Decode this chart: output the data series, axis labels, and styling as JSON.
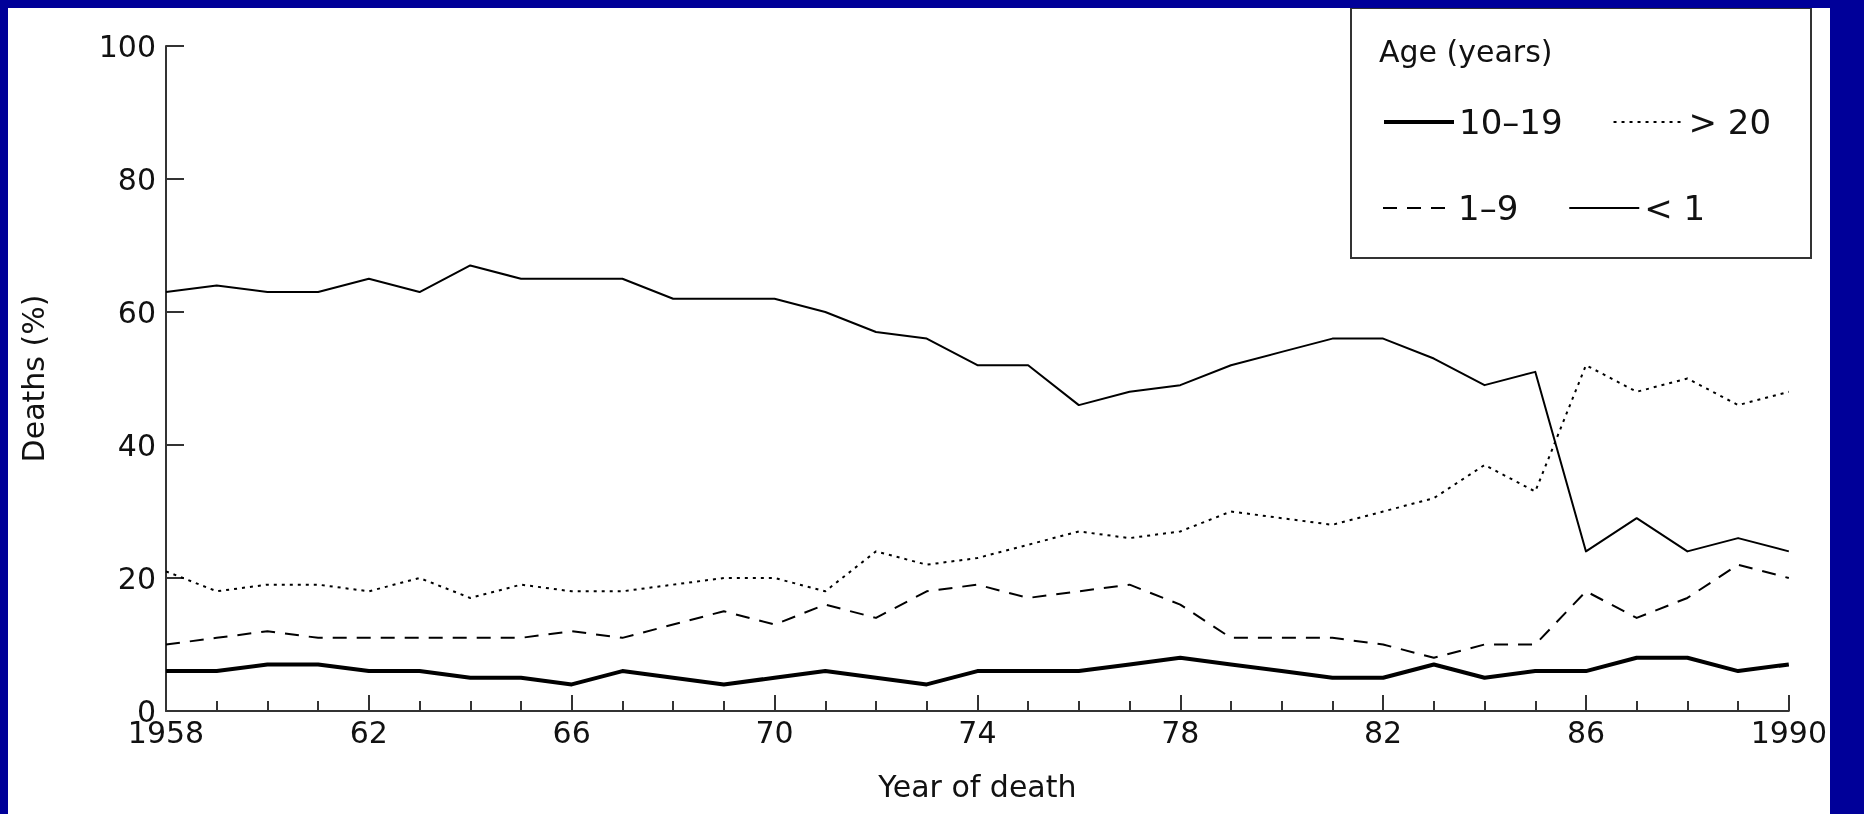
{
  "chart_data": {
    "type": "line",
    "xlabel": "Year of death",
    "ylabel": "Deaths (%)",
    "legend_title": "Age (years)",
    "legend": "top right",
    "grid": false,
    "x": [
      1958,
      1959,
      1960,
      1961,
      1962,
      1963,
      1964,
      1965,
      1966,
      1967,
      1968,
      1969,
      1970,
      1971,
      1972,
      1973,
      1974,
      1975,
      1976,
      1977,
      1978,
      1979,
      1980,
      1981,
      1982,
      1983,
      1984,
      1985,
      1986,
      1987,
      1988,
      1989,
      1990
    ],
    "xlim": [
      1958,
      1990
    ],
    "xticks": [
      1958,
      {
        "value": 1962,
        "label": "62"
      },
      {
        "value": 1966,
        "label": "66"
      },
      {
        "value": 1970,
        "label": "70"
      },
      {
        "value": 1974,
        "label": "74"
      },
      {
        "value": 1978,
        "label": "78"
      },
      {
        "value": 1982,
        "label": "82"
      },
      {
        "value": 1986,
        "label": "86"
      },
      1990
    ],
    "ylim": [
      0,
      100
    ],
    "yticks": [
      0,
      20,
      40,
      60,
      80,
      100
    ],
    "marker": "none",
    "series": [
      {
        "name": "10–19",
        "color": "#000000",
        "line_style": "solid",
        "values": [
          6,
          6,
          7,
          7,
          6,
          6,
          5,
          5,
          4,
          6,
          5,
          4,
          5,
          6,
          5,
          4,
          6,
          6,
          6,
          7,
          8,
          7,
          6,
          5,
          5,
          7,
          5,
          6,
          6,
          8,
          8,
          6,
          7
        ]
      },
      {
        "name": "> 20",
        "color": "#000000",
        "line_style": "dotted",
        "values": [
          21,
          18,
          19,
          19,
          18,
          20,
          17,
          19,
          18,
          18,
          19,
          20,
          20,
          18,
          24,
          22,
          23,
          25,
          27,
          26,
          27,
          30,
          29,
          28,
          30,
          32,
          37,
          33,
          52,
          48,
          50,
          46,
          48
        ]
      },
      {
        "name": "1–9",
        "color": "#000000",
        "line_style": "dashed",
        "values": [
          10,
          11,
          12,
          11,
          11,
          11,
          11,
          11,
          12,
          11,
          13,
          15,
          13,
          16,
          14,
          18,
          19,
          17,
          18,
          19,
          16,
          11,
          11,
          11,
          10,
          8,
          10,
          10,
          18,
          14,
          17,
          22,
          20
        ]
      },
      {
        "name": "< 1",
        "color": "#000000",
        "line_style": "solid",
        "values": [
          63,
          64,
          63,
          63,
          65,
          63,
          67,
          65,
          65,
          65,
          62,
          62,
          62,
          60,
          57,
          56,
          52,
          52,
          46,
          48,
          49,
          52,
          54,
          56,
          56,
          53,
          49,
          51,
          24,
          29,
          24,
          26,
          24
        ]
      }
    ]
  }
}
